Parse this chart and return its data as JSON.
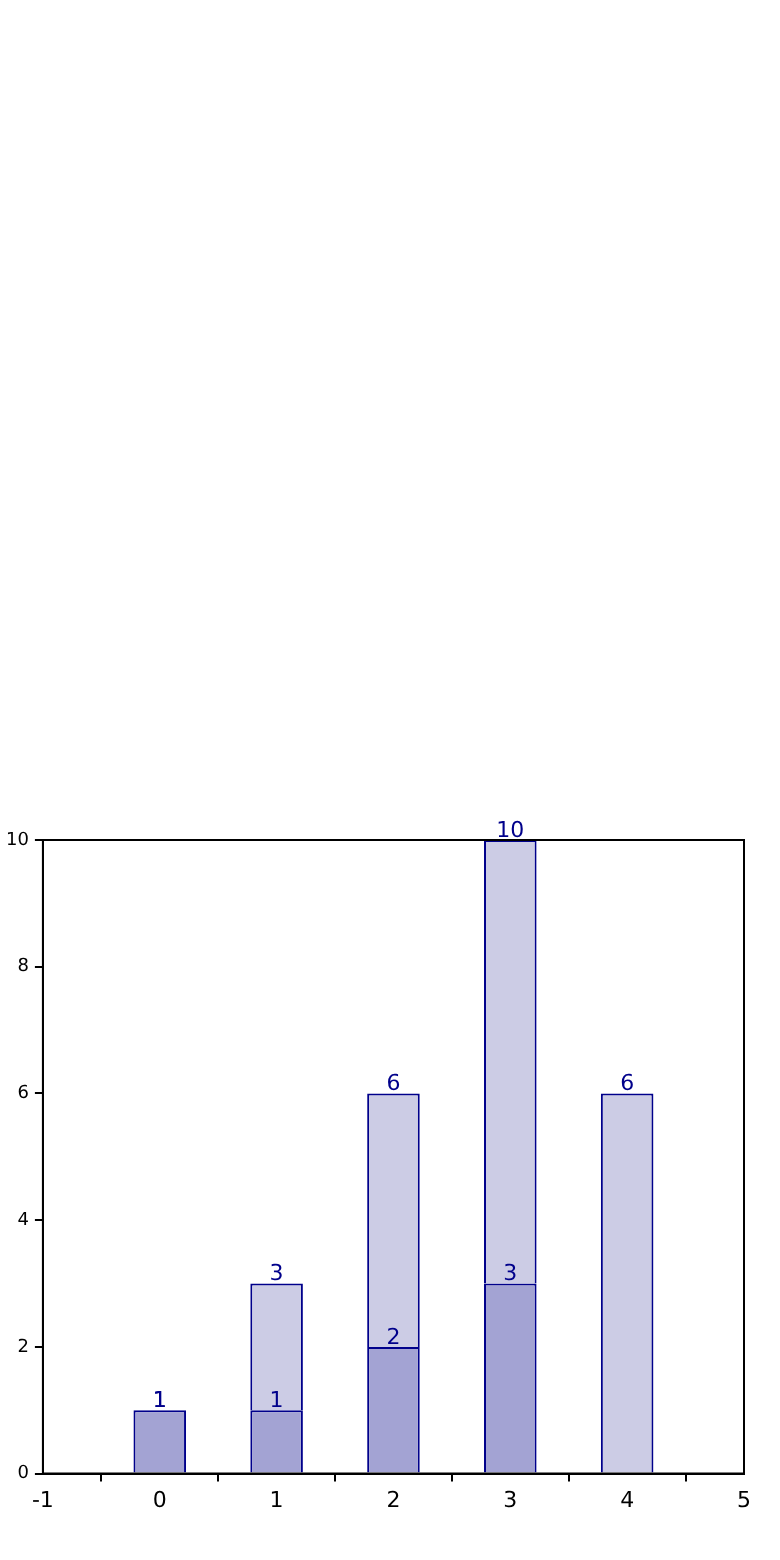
{
  "chart_data": {
    "type": "bar",
    "stacked": true,
    "x": [
      0,
      1,
      2,
      3,
      4
    ],
    "series": [
      {
        "color": "#a3a3d3",
        "values": [
          1,
          1,
          2,
          3,
          null
        ],
        "value_labels": [
          "1",
          "1",
          "2",
          "3",
          null
        ]
      },
      {
        "color": "#ccccE5",
        "values": [
          0,
          2,
          4,
          7,
          6
        ]
      }
    ],
    "totals": [
      "1",
      "3",
      "6",
      "10",
      "6"
    ],
    "xlim": [
      -1,
      5
    ],
    "xticks": [
      -1,
      0,
      1,
      2,
      3,
      4,
      5
    ],
    "ylim": [
      0,
      10
    ],
    "yticks": [
      0,
      2,
      4,
      6,
      8,
      10
    ],
    "grid": false,
    "legend": false
  }
}
